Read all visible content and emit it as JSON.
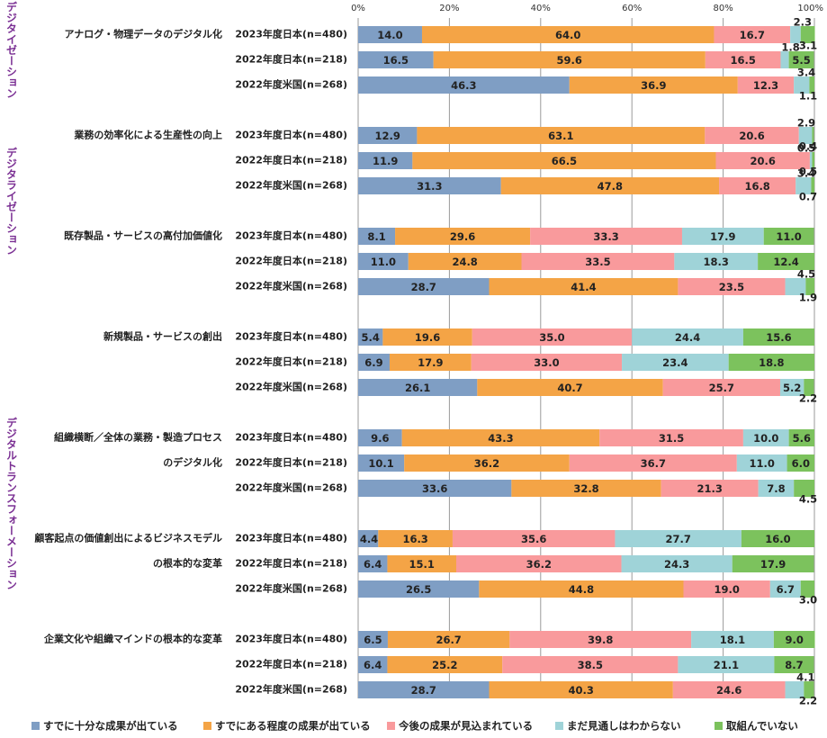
{
  "chart_data": {
    "type": "bar",
    "stacked": true,
    "orientation": "horizontal",
    "xlim": [
      0,
      100
    ],
    "x_ticks": [
      "0%",
      "20%",
      "40%",
      "60%",
      "80%",
      "100%"
    ],
    "grid": true,
    "legend_position": "bottom",
    "colors": [
      "#7f9ec4",
      "#f4a446",
      "#f99a9c",
      "#9fd3d8",
      "#7cc25d"
    ],
    "series_names": [
      "すでに十分な成果が出ている",
      "すでにある程度の成果が出ている",
      "今後の成果が見込まれている",
      "まだ見通しはわからない",
      "取組んでいない"
    ],
    "categories_sections": [
      {
        "label": "デジタイゼーション",
        "groups": [
          0
        ]
      },
      {
        "label": "デジタライゼーション",
        "groups": [
          1,
          2
        ]
      },
      {
        "label": "デジタルトランスフォーメーション",
        "groups": [
          3,
          4,
          5,
          6
        ]
      }
    ],
    "groups": [
      {
        "label_lines": [
          "アナログ・物理データのデジタル化"
        ],
        "rows": [
          {
            "label": "2023年度日本(n=480)",
            "values": [
              14.0,
              64.0,
              16.7,
              2.3,
              3.1
            ]
          },
          {
            "label": "2022年度日本(n=218)",
            "values": [
              16.5,
              59.6,
              16.5,
              1.8,
              5.5
            ]
          },
          {
            "label": "2022年度米国(n=268)",
            "values": [
              46.3,
              36.9,
              12.3,
              3.4,
              1.1
            ]
          }
        ]
      },
      {
        "label_lines": [
          "業務の効率化による生産性の向上"
        ],
        "rows": [
          {
            "label": "2023年度日本(n=480)",
            "values": [
              12.9,
              63.1,
              20.6,
              2.9,
              0.4
            ]
          },
          {
            "label": "2022年度日本(n=218)",
            "values": [
              11.9,
              66.5,
              20.6,
              0.5,
              0.5
            ]
          },
          {
            "label": "2022年度米国(n=268)",
            "values": [
              31.3,
              47.8,
              16.8,
              3.4,
              0.7
            ]
          }
        ]
      },
      {
        "label_lines": [
          "既存製品・サービスの高付加価値化"
        ],
        "rows": [
          {
            "label": "2023年度日本(n=480)",
            "values": [
              8.1,
              29.6,
              33.3,
              17.9,
              11.0
            ]
          },
          {
            "label": "2022年度日本(n=218)",
            "values": [
              11.0,
              24.8,
              33.5,
              18.3,
              12.4
            ]
          },
          {
            "label": "2022年度米国(n=268)",
            "values": [
              28.7,
              41.4,
              23.5,
              4.5,
              1.9
            ]
          }
        ]
      },
      {
        "label_lines": [
          "新規製品・サービスの創出"
        ],
        "rows": [
          {
            "label": "2023年度日本(n=480)",
            "values": [
              5.4,
              19.6,
              35.0,
              24.4,
              15.6
            ]
          },
          {
            "label": "2022年度日本(n=218)",
            "values": [
              6.9,
              17.9,
              33.0,
              23.4,
              18.8
            ]
          },
          {
            "label": "2022年度米国(n=268)",
            "values": [
              26.1,
              40.7,
              25.7,
              5.2,
              2.2
            ]
          }
        ]
      },
      {
        "label_lines": [
          "組織横断／全体の業務・製造プロセス",
          "のデジタル化"
        ],
        "rows": [
          {
            "label": "2023年度日本(n=480)",
            "values": [
              9.6,
              43.3,
              31.5,
              10.0,
              5.6
            ]
          },
          {
            "label": "2022年度日本(n=218)",
            "values": [
              10.1,
              36.2,
              36.7,
              11.0,
              6.0
            ]
          },
          {
            "label": "2022年度米国(n=268)",
            "values": [
              33.6,
              32.8,
              21.3,
              7.8,
              4.5
            ]
          }
        ]
      },
      {
        "label_lines": [
          "顧客起点の価値創出によるビジネスモデル",
          "の根本的な変革"
        ],
        "rows": [
          {
            "label": "2023年度日本(n=480)",
            "values": [
              4.4,
              16.3,
              35.6,
              27.7,
              16.0
            ]
          },
          {
            "label": "2022年度日本(n=218)",
            "values": [
              6.4,
              15.1,
              36.2,
              24.3,
              17.9
            ]
          },
          {
            "label": "2022年度米国(n=268)",
            "values": [
              26.5,
              44.8,
              19.0,
              6.7,
              3.0
            ]
          }
        ]
      },
      {
        "label_lines": [
          "企業文化や組織マインドの根本的な変革"
        ],
        "rows": [
          {
            "label": "2023年度日本(n=480)",
            "values": [
              6.5,
              26.7,
              39.8,
              18.1,
              9.0
            ]
          },
          {
            "label": "2022年度日本(n=218)",
            "values": [
              6.4,
              25.2,
              38.5,
              21.1,
              8.7
            ]
          },
          {
            "label": "2022年度米国(n=268)",
            "values": [
              28.7,
              40.3,
              24.6,
              4.1,
              2.2
            ]
          }
        ]
      }
    ]
  }
}
